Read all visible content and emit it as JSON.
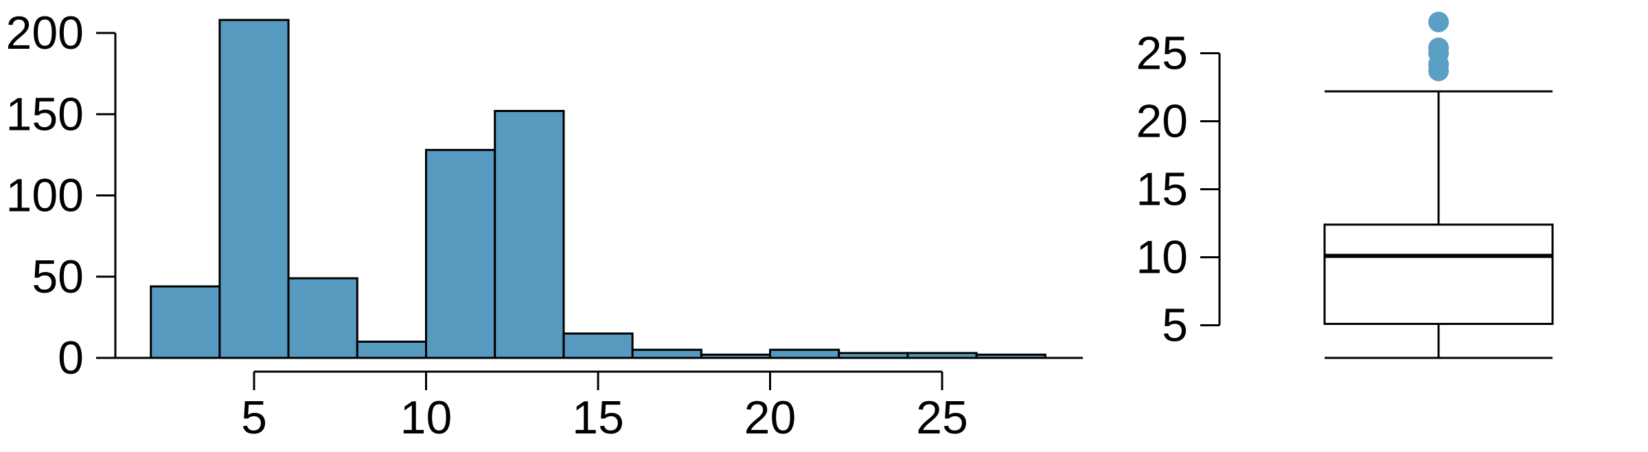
{
  "chart_data": [
    {
      "type": "bar",
      "subtype": "histogram",
      "title": "",
      "xlabel": "",
      "ylabel": "",
      "bin_edges": [
        2,
        4,
        6,
        8,
        10,
        12,
        14,
        16,
        18,
        20,
        22,
        24,
        26,
        28
      ],
      "values": [
        44,
        208,
        49,
        10,
        128,
        152,
        15,
        5,
        2,
        5,
        3,
        3,
        2
      ],
      "xlim": [
        -2,
        30
      ],
      "ylim": [
        0,
        210
      ],
      "x_ticks": [
        5,
        10,
        15,
        20,
        25
      ],
      "y_ticks": [
        0,
        50,
        100,
        150,
        200
      ],
      "grid": false,
      "bar_color": "#569bbf"
    },
    {
      "type": "box",
      "title": "",
      "ylabel": "",
      "min": 2.6,
      "q1": 5.1,
      "median": 10.1,
      "q3": 12.4,
      "whisker_low": 2.6,
      "whisker_high": 22.2,
      "outliers": [
        23.7,
        24.2,
        25.0,
        25.4,
        27.3
      ],
      "y_ticks": [
        5,
        10,
        15,
        20,
        25
      ],
      "ylim": [
        2.6,
        28
      ],
      "grid": false,
      "outlier_color": "#5b9fc5"
    }
  ]
}
